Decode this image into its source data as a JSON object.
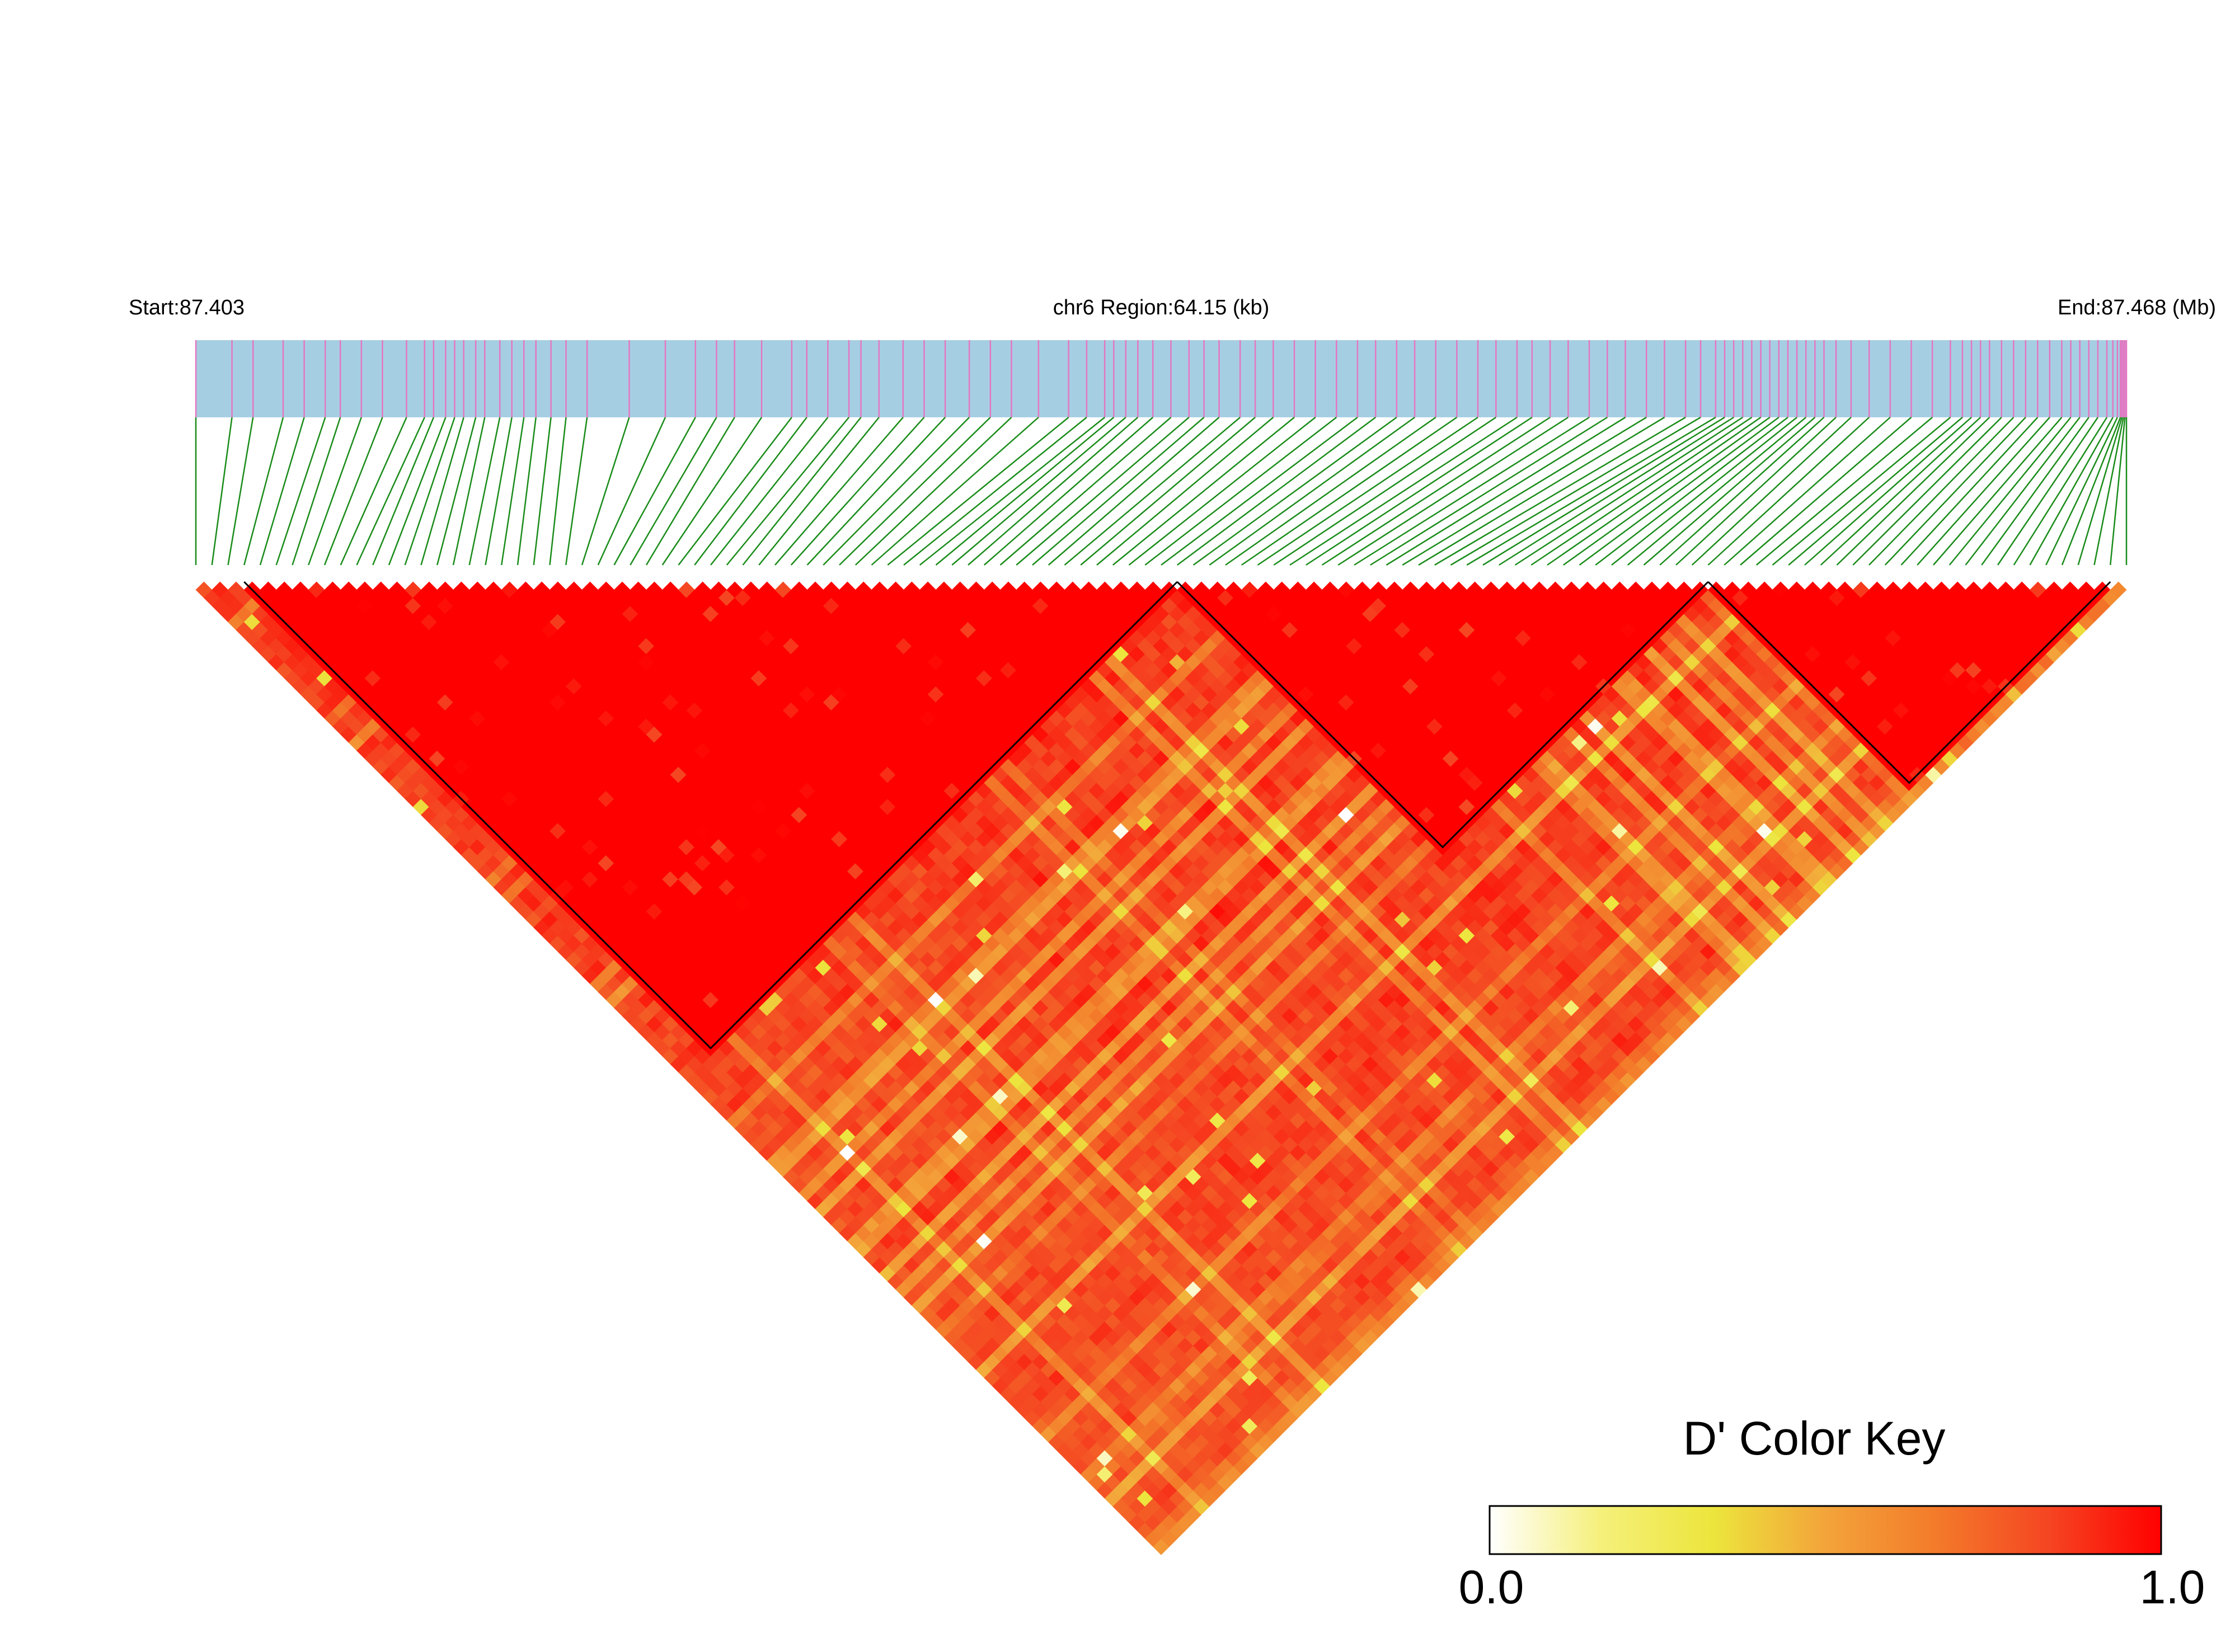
{
  "header": {
    "start_label": "Start:87.403",
    "region_label": "chr6 Region:64.15 (kb)",
    "end_label": "End:87.468 (Mb)"
  },
  "legend": {
    "title": "D' Color Key",
    "min_label": "0.0",
    "max_label": "1.0",
    "stops": [
      "#ffffff",
      "#f5f07a",
      "#ece53c",
      "#f3a43a",
      "#f37a2a",
      "#f54522",
      "#ff0000"
    ]
  },
  "colors": {
    "track_bg": "#a6cee3",
    "snp_tick": "#e377c2",
    "connector": "#1a8c1a",
    "block_outline": "#000000"
  },
  "chart_data": {
    "type": "heatmap",
    "description_free": true,
    "region": {
      "chromosome": "chr6",
      "start_mb": 87.403,
      "end_mb": 87.468,
      "length_kb": 64.15
    },
    "snp_count": 121,
    "snp_positions_kb": [
      0.0,
      1.2,
      1.9,
      2.9,
      3.6,
      4.3,
      4.8,
      5.5,
      6.2,
      7.0,
      7.6,
      7.9,
      8.3,
      8.6,
      8.9,
      9.3,
      9.6,
      10.1,
      10.5,
      10.9,
      11.3,
      11.8,
      12.3,
      13.0,
      14.4,
      15.6,
      16.6,
      17.3,
      17.9,
      18.8,
      19.8,
      20.3,
      21.0,
      21.7,
      22.1,
      22.7,
      23.5,
      24.2,
      24.9,
      25.7,
      26.4,
      27.1,
      28.0,
      29.0,
      29.6,
      30.2,
      30.5,
      30.9,
      31.3,
      31.8,
      32.4,
      33.0,
      33.5,
      34.0,
      34.7,
      35.2,
      35.8,
      36.5,
      37.2,
      37.9,
      38.6,
      39.2,
      39.9,
      40.5,
      41.2,
      41.9,
      42.6,
      43.2,
      43.9,
      44.4,
      45.0,
      45.6,
      46.3,
      46.9,
      47.5,
      48.2,
      48.8,
      49.5,
      50.0,
      50.5,
      50.8,
      51.1,
      51.4,
      51.7,
      52.0,
      52.3,
      52.6,
      52.9,
      53.2,
      53.5,
      53.8,
      54.1,
      54.5,
      55.0,
      55.6,
      56.3,
      57.0,
      57.7,
      58.3,
      58.7,
      59.0,
      59.3,
      59.6,
      60.0,
      60.4,
      60.8,
      61.2,
      61.6,
      62.0,
      62.3,
      62.6,
      62.9,
      63.2,
      63.5,
      63.7,
      63.85,
      63.95,
      64.0,
      64.05,
      64.1,
      64.15
    ],
    "ld_blocks": [
      {
        "first_snp": 3,
        "last_snp": 61
      },
      {
        "first_snp": 61,
        "last_snp": 94
      },
      {
        "first_snp": 94,
        "last_snp": 119
      }
    ],
    "color_scale": {
      "min": 0.0,
      "max": 1.0,
      "metric": "D'"
    },
    "seed": 20240611
  }
}
